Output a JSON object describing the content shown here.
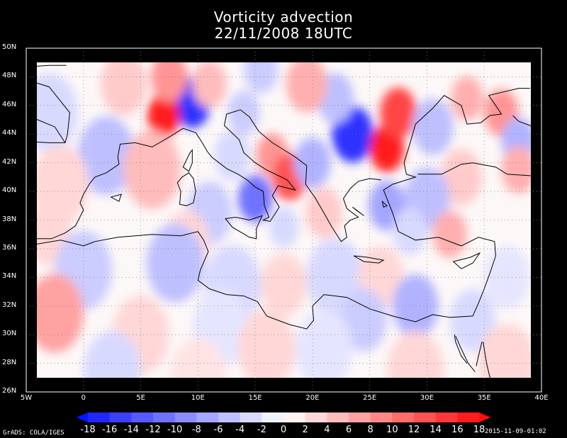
{
  "title": "Vorticity advection",
  "subtitle": "22/11/2008 18UTC",
  "lat_labels": [
    "50N",
    "48N",
    "46N",
    "44N",
    "42N",
    "40N",
    "38N",
    "36N",
    "34N",
    "32N",
    "30N",
    "28N",
    "26N"
  ],
  "lon_labels": [
    "5W",
    "0",
    "5E",
    "10E",
    "15E",
    "20E",
    "25E",
    "30E",
    "35E",
    "40E"
  ],
  "colorbar": {
    "labels": [
      "-18",
      "-16",
      "-14",
      "-12",
      "-10",
      "-8",
      "-6",
      "-4",
      "-2",
      "0",
      "2",
      "4",
      "6",
      "8",
      "10",
      "12",
      "14",
      "16",
      "18"
    ],
    "negative_color": "#0018ff",
    "positive_color": "#ff1010"
  },
  "footer_left": "GrADS: COLA/IGES",
  "footer_right": "2015-11-09-01:02",
  "map": {
    "extent": {
      "lon": [
        -5,
        40
      ],
      "lat": [
        26,
        50
      ]
    },
    "blobs": [
      {
        "lon": 9.5,
        "lat": 46.2,
        "r": 1.6,
        "v": -16
      },
      {
        "lon": 7.0,
        "lat": 45.3,
        "r": 1.4,
        "v": 17
      },
      {
        "lon": 7.5,
        "lat": 48.0,
        "r": 1.6,
        "v": 8
      },
      {
        "lon": 11.0,
        "lat": 47.5,
        "r": 1.5,
        "v": 5
      },
      {
        "lon": 14.0,
        "lat": 45.5,
        "r": 1.4,
        "v": -4
      },
      {
        "lon": 16.5,
        "lat": 42.5,
        "r": 1.4,
        "v": 8
      },
      {
        "lon": 18.0,
        "lat": 41.0,
        "r": 1.5,
        "v": 13
      },
      {
        "lon": 15.0,
        "lat": 39.5,
        "r": 1.5,
        "v": -11
      },
      {
        "lon": 17.5,
        "lat": 37.5,
        "r": 1.3,
        "v": -3
      },
      {
        "lon": 20.0,
        "lat": 42.0,
        "r": 1.6,
        "v": -6
      },
      {
        "lon": 23.5,
        "lat": 44.0,
        "r": 1.8,
        "v": -16
      },
      {
        "lon": 22.0,
        "lat": 46.5,
        "r": 1.6,
        "v": -5
      },
      {
        "lon": 26.5,
        "lat": 43.0,
        "r": 1.5,
        "v": 17
      },
      {
        "lon": 27.5,
        "lat": 45.5,
        "r": 1.6,
        "v": 14
      },
      {
        "lon": 19.5,
        "lat": 47.5,
        "r": 1.8,
        "v": 6
      },
      {
        "lon": 30.5,
        "lat": 44.5,
        "r": 1.8,
        "v": -5
      },
      {
        "lon": 33.5,
        "lat": 46.5,
        "r": 1.4,
        "v": 6
      },
      {
        "lon": 36.5,
        "lat": 45.5,
        "r": 1.5,
        "v": 8
      },
      {
        "lon": 38.0,
        "lat": 43.5,
        "r": 1.5,
        "v": -6
      },
      {
        "lon": 38.0,
        "lat": 41.5,
        "r": 1.5,
        "v": 6
      },
      {
        "lon": 33.0,
        "lat": 41.0,
        "r": 1.8,
        "v": 4
      },
      {
        "lon": 30.0,
        "lat": 39.5,
        "r": 2.0,
        "v": -5
      },
      {
        "lon": 26.5,
        "lat": 39.0,
        "r": 1.6,
        "v": -7
      },
      {
        "lon": 32.0,
        "lat": 37.0,
        "r": 1.5,
        "v": 6
      },
      {
        "lon": 28.5,
        "lat": 37.2,
        "r": 1.5,
        "v": -3
      },
      {
        "lon": 2.0,
        "lat": 42.5,
        "r": 2.5,
        "v": -5
      },
      {
        "lon": 6.0,
        "lat": 41.5,
        "r": 2.5,
        "v": 5
      },
      {
        "lon": 11.0,
        "lat": 38.5,
        "r": 2.0,
        "v": -4
      },
      {
        "lon": 9.0,
        "lat": 36.5,
        "r": 2.0,
        "v": 3
      },
      {
        "lon": -3.0,
        "lat": 45.5,
        "r": 2.5,
        "v": -3
      },
      {
        "lon": -2.0,
        "lat": 40.5,
        "r": 2.5,
        "v": 3
      },
      {
        "lon": -3.0,
        "lat": 37.0,
        "r": 2.0,
        "v": 3
      },
      {
        "lon": 0.0,
        "lat": 34.5,
        "r": 2.5,
        "v": -4
      },
      {
        "lon": 8.0,
        "lat": 35.0,
        "r": 2.5,
        "v": -5
      },
      {
        "lon": 13.0,
        "lat": 33.5,
        "r": 2.5,
        "v": -3
      },
      {
        "lon": 17.5,
        "lat": 33.5,
        "r": 2.0,
        "v": 3
      },
      {
        "lon": 22.0,
        "lat": 34.0,
        "r": 2.5,
        "v": -3
      },
      {
        "lon": 26.0,
        "lat": 34.0,
        "r": 2.0,
        "v": 3
      },
      {
        "lon": 29.0,
        "lat": 32.0,
        "r": 2.0,
        "v": -6
      },
      {
        "lon": 24.5,
        "lat": 31.0,
        "r": 2.0,
        "v": -4
      },
      {
        "lon": -2.5,
        "lat": 31.5,
        "r": 2.5,
        "v": 7
      },
      {
        "lon": 5.0,
        "lat": 30.0,
        "r": 2.5,
        "v": 3
      },
      {
        "lon": 12.0,
        "lat": 30.5,
        "r": 2.5,
        "v": -2
      },
      {
        "lon": 16.0,
        "lat": 29.0,
        "r": 2.5,
        "v": 3
      },
      {
        "lon": 21.0,
        "lat": 29.0,
        "r": 2.5,
        "v": -2
      },
      {
        "lon": 29.0,
        "lat": 27.5,
        "r": 2.5,
        "v": 3
      },
      {
        "lon": 34.0,
        "lat": 31.0,
        "r": 2.0,
        "v": -3
      },
      {
        "lon": 37.0,
        "lat": 28.0,
        "r": 2.5,
        "v": 3
      },
      {
        "lon": 2.5,
        "lat": 27.5,
        "r": 2.5,
        "v": -3
      },
      {
        "lon": 10.0,
        "lat": 27.0,
        "r": 2.5,
        "v": 2
      },
      {
        "lon": 37.0,
        "lat": 34.0,
        "r": 2.0,
        "v": -2
      },
      {
        "lon": 21.0,
        "lat": 38.5,
        "r": 1.6,
        "v": 4
      },
      {
        "lon": 13.0,
        "lat": 42.5,
        "r": 1.6,
        "v": -3
      },
      {
        "lon": 3.5,
        "lat": 47.5,
        "r": 2.0,
        "v": 4
      },
      {
        "lon": 15.5,
        "lat": 48.5,
        "r": 1.5,
        "v": -4
      }
    ],
    "coastlines": [
      [
        [
          -5,
          48.7
        ],
        [
          -3,
          48.8
        ],
        [
          -1.5,
          48.8
        ]
      ],
      [
        [
          -5,
          47.8
        ],
        [
          -3,
          47.3
        ],
        [
          -2.2,
          46.5
        ],
        [
          -1.2,
          45.5
        ],
        [
          -1.4,
          44.0
        ],
        [
          -1.6,
          43.4
        ],
        [
          -3,
          43.4
        ],
        [
          -5,
          43.5
        ]
      ],
      [
        [
          -5,
          36.2
        ],
        [
          -2,
          36.6
        ],
        [
          0,
          36.2
        ],
        [
          1,
          36.5
        ],
        [
          3,
          36.8
        ],
        [
          6,
          37.0
        ],
        [
          8.5,
          36.9
        ],
        [
          10,
          37.2
        ],
        [
          10.5,
          36.6
        ],
        [
          10.9,
          35.8
        ],
        [
          10.2,
          34.5
        ],
        [
          10.0,
          33.8
        ],
        [
          11.0,
          33.2
        ],
        [
          12.5,
          32.8
        ],
        [
          14,
          32.7
        ],
        [
          15.2,
          32.3
        ],
        [
          16,
          31.3
        ],
        [
          18,
          30.7
        ],
        [
          19.5,
          30.4
        ],
        [
          20.1,
          31.0
        ],
        [
          20,
          32.0
        ],
        [
          21,
          32.8
        ],
        [
          23,
          32.6
        ],
        [
          25,
          31.8
        ],
        [
          27,
          31.3
        ],
        [
          29,
          30.9
        ],
        [
          30.5,
          31.4
        ],
        [
          32,
          31.2
        ],
        [
          34,
          31.3
        ],
        [
          34.5,
          32.2
        ],
        [
          35.0,
          33.2
        ],
        [
          35.5,
          34.3
        ],
        [
          36,
          35.5
        ],
        [
          35.9,
          36.5
        ],
        [
          34.5,
          36.8
        ],
        [
          33,
          36.2
        ],
        [
          31,
          36.8
        ],
        [
          29,
          36.6
        ],
        [
          27.5,
          37.2
        ],
        [
          27,
          38.5
        ],
        [
          26.5,
          39.5
        ],
        [
          26.2,
          40.1
        ],
        [
          27,
          40.5
        ],
        [
          29,
          41.0
        ],
        [
          28.2,
          41.2
        ],
        [
          28,
          42.0
        ],
        [
          28.5,
          43.3
        ],
        [
          29,
          44.7
        ],
        [
          30.5,
          45.8
        ],
        [
          31.5,
          46.7
        ],
        [
          33,
          46.0
        ],
        [
          33.5,
          44.7
        ],
        [
          34.7,
          44.8
        ],
        [
          35.5,
          45.3
        ],
        [
          36.5,
          45.4
        ],
        [
          35.4,
          46.7
        ],
        [
          38,
          47.2
        ],
        [
          39,
          47.2
        ]
      ],
      [
        [
          41,
          41.0
        ],
        [
          39,
          41.1
        ],
        [
          37,
          41.2
        ],
        [
          36,
          41.7
        ],
        [
          34,
          42.0
        ],
        [
          33,
          41.9
        ],
        [
          31.3,
          41.2
        ],
        [
          29.2,
          41.2
        ]
      ],
      [
        [
          40,
          44.0
        ],
        [
          39,
          44.6
        ],
        [
          38,
          44.9
        ],
        [
          37.5,
          45.3
        ]
      ],
      [
        [
          3.2,
          43.3
        ],
        [
          4.5,
          43.4
        ],
        [
          6,
          43.1
        ],
        [
          7.5,
          43.8
        ],
        [
          8.7,
          44.4
        ],
        [
          9.8,
          44.1
        ],
        [
          10.3,
          43.5
        ],
        [
          10.8,
          42.8
        ],
        [
          11.2,
          42.4
        ],
        [
          12.5,
          41.6
        ],
        [
          13.5,
          41.2
        ],
        [
          14.3,
          40.8
        ],
        [
          15,
          40.3
        ],
        [
          15.7,
          40.0
        ],
        [
          15.8,
          39.0
        ],
        [
          16.2,
          38.2
        ],
        [
          15.7,
          38.0
        ],
        [
          16.3,
          37.9
        ],
        [
          17.1,
          38.9
        ],
        [
          16.5,
          39.7
        ],
        [
          17.0,
          40.4
        ],
        [
          18.5,
          40.1
        ],
        [
          17.8,
          40.8
        ],
        [
          16,
          41.5
        ],
        [
          15,
          42.0
        ],
        [
          14,
          42.7
        ],
        [
          13.6,
          43.6
        ],
        [
          12.3,
          44.6
        ],
        [
          12.5,
          45.4
        ],
        [
          13.7,
          45.7
        ],
        [
          14.5,
          45.2
        ],
        [
          15.3,
          44.2
        ],
        [
          16.5,
          43.4
        ],
        [
          17.5,
          42.9
        ],
        [
          18.5,
          42.4
        ],
        [
          19.5,
          41.8
        ],
        [
          19.4,
          40.5
        ],
        [
          20.2,
          39.6
        ],
        [
          21,
          38.5
        ],
        [
          21.7,
          37.5
        ],
        [
          22.5,
          36.5
        ],
        [
          23.0,
          36.8
        ],
        [
          22.8,
          37.6
        ],
        [
          23.3,
          38.0
        ],
        [
          24,
          38.2
        ],
        [
          23,
          38.8
        ],
        [
          22.7,
          39.5
        ],
        [
          23.3,
          40.2
        ],
        [
          24,
          40.7
        ],
        [
          25,
          40.9
        ],
        [
          26,
          40.8
        ]
      ],
      [
        [
          -5,
          45.4
        ],
        [
          -4,
          45.0
        ],
        [
          -2.5,
          44.5
        ],
        [
          -1.6,
          43.4
        ]
      ],
      [
        [
          3.2,
          43.3
        ],
        [
          3.0,
          42.4
        ],
        [
          3.1,
          41.9
        ],
        [
          2.0,
          41.3
        ],
        [
          1.0,
          41.0
        ],
        [
          0.5,
          40.5
        ],
        [
          0,
          39.8
        ],
        [
          -0.3,
          39.2
        ],
        [
          0,
          38.7
        ],
        [
          -0.7,
          37.6
        ],
        [
          -1.6,
          37.1
        ],
        [
          -2.8,
          36.7
        ],
        [
          -4.5,
          36.7
        ],
        [
          -5,
          36.1
        ]
      ]
    ],
    "islands": [
      [
        [
          8.6,
          41.0
        ],
        [
          9.2,
          41.3
        ],
        [
          9.6,
          40.9
        ],
        [
          9.8,
          40.0
        ],
        [
          9.6,
          39.2
        ],
        [
          9.0,
          39.0
        ],
        [
          8.4,
          39.1
        ],
        [
          8.5,
          40.0
        ],
        [
          8.2,
          40.6
        ],
        [
          8.6,
          41.0
        ]
      ],
      [
        [
          8.7,
          41.7
        ],
        [
          9.3,
          42.7
        ],
        [
          9.5,
          42.9
        ],
        [
          9.5,
          42.0
        ],
        [
          9.2,
          41.4
        ],
        [
          8.7,
          41.7
        ]
      ],
      [
        [
          12.4,
          38.1
        ],
        [
          13.3,
          38.2
        ],
        [
          14.5,
          38.0
        ],
        [
          15.6,
          38.3
        ],
        [
          15.1,
          37.4
        ],
        [
          15.1,
          36.7
        ],
        [
          14.5,
          36.8
        ],
        [
          13.0,
          37.5
        ],
        [
          12.4,
          38.1
        ]
      ],
      [
        [
          23.6,
          35.5
        ],
        [
          24.8,
          35.4
        ],
        [
          26.2,
          35.2
        ],
        [
          25.8,
          35.0
        ],
        [
          24.5,
          35.1
        ],
        [
          23.6,
          35.5
        ]
      ],
      [
        [
          32.3,
          35.1
        ],
        [
          33.8,
          35.4
        ],
        [
          34.6,
          35.7
        ],
        [
          34.0,
          35.0
        ],
        [
          33.0,
          34.6
        ],
        [
          32.3,
          35.1
        ]
      ],
      [
        [
          2.4,
          39.6
        ],
        [
          3.3,
          39.8
        ],
        [
          3.1,
          39.3
        ],
        [
          2.4,
          39.6
        ]
      ],
      [
        [
          23.5,
          38.9
        ],
        [
          24.5,
          38.3
        ],
        [
          23.8,
          38.7
        ],
        [
          23.5,
          38.9
        ]
      ],
      [
        [
          26.1,
          39.3
        ],
        [
          26.5,
          39.0
        ],
        [
          26.2,
          38.9
        ],
        [
          26.1,
          39.3
        ]
      ]
    ],
    "rivers_or_borders": [
      [
        [
          33.5,
          28.0
        ],
        [
          33.0,
          28.5
        ],
        [
          32.5,
          29.5
        ],
        [
          32.4,
          30.0
        ]
      ],
      [
        [
          34.8,
          29.5
        ],
        [
          34.5,
          28.5
        ],
        [
          34.3,
          27.8
        ]
      ],
      [
        [
          34.9,
          29.5
        ],
        [
          35.2,
          28.0
        ],
        [
          35.5,
          27.0
        ],
        [
          36,
          26.0
        ]
      ],
      [
        [
          32.5,
          29.9
        ],
        [
          33.0,
          29.0
        ],
        [
          33.6,
          28.0
        ],
        [
          34.2,
          27.4
        ]
      ]
    ]
  }
}
